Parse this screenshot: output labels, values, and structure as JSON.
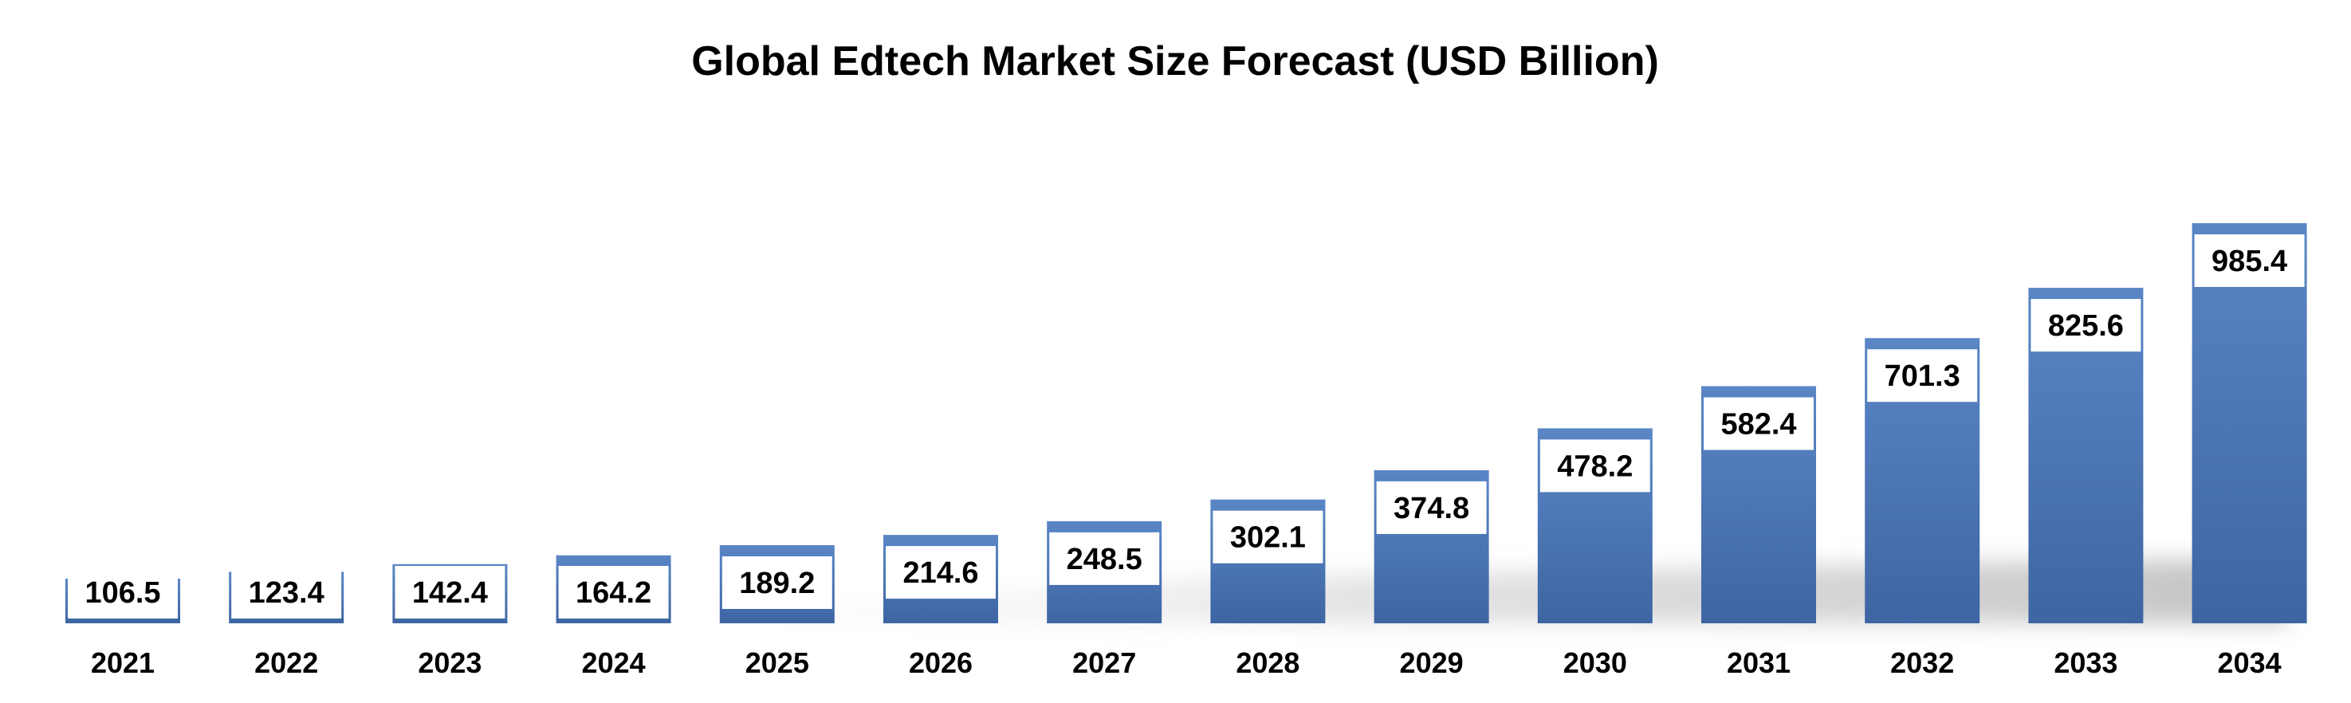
{
  "chart_data": {
    "type": "bar",
    "title": "Global Edtech Market Size Forecast (USD Billion)",
    "categories": [
      "2021",
      "2022",
      "2023",
      "2024",
      "2025",
      "2026",
      "2027",
      "2028",
      "2029",
      "2030",
      "2031",
      "2032",
      "2033",
      "2034"
    ],
    "values": [
      106.5,
      123.4,
      142.4,
      164.2,
      189.2,
      214.6,
      248.5,
      302.1,
      374.8,
      478.2,
      582.4,
      701.3,
      825.6,
      985.4
    ],
    "data_labels": [
      "106.5",
      "123.4",
      "142.4",
      "164.2",
      "189.2",
      "214.6",
      "248.5",
      "302.1",
      "374.8",
      "478.2",
      "582.4",
      "701.3",
      "825.6",
      "985.4"
    ],
    "xlabel": "",
    "ylabel": "",
    "ylim": [
      0,
      1000
    ],
    "grid": false,
    "legend": "none",
    "colors": {
      "bar_top": "#5a86c6",
      "bar_bottom": "#3e65a3",
      "label_bg": "#ffffff",
      "shadow": "#c8c8c8"
    }
  }
}
